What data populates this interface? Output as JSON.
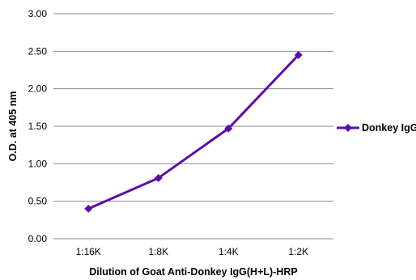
{
  "chart_data": {
    "type": "line",
    "title": "",
    "xlabel": "Dilution of Goat Anti-Donkey IgG(H+L)-HRP",
    "ylabel": "O.D. at 405 nm",
    "categories": [
      "1:16K",
      "1:8K",
      "1:4K",
      "1:2K"
    ],
    "ylim": [
      0,
      3.0
    ],
    "yticks": [
      "0.00",
      "0.50",
      "1.00",
      "1.50",
      "2.00",
      "2.50",
      "3.00"
    ],
    "grid": true,
    "legend_position": "right",
    "series": [
      {
        "name": "Donkey IgG",
        "color": "#5b0fa8",
        "values": [
          0.4,
          0.81,
          1.47,
          2.45
        ]
      }
    ]
  }
}
